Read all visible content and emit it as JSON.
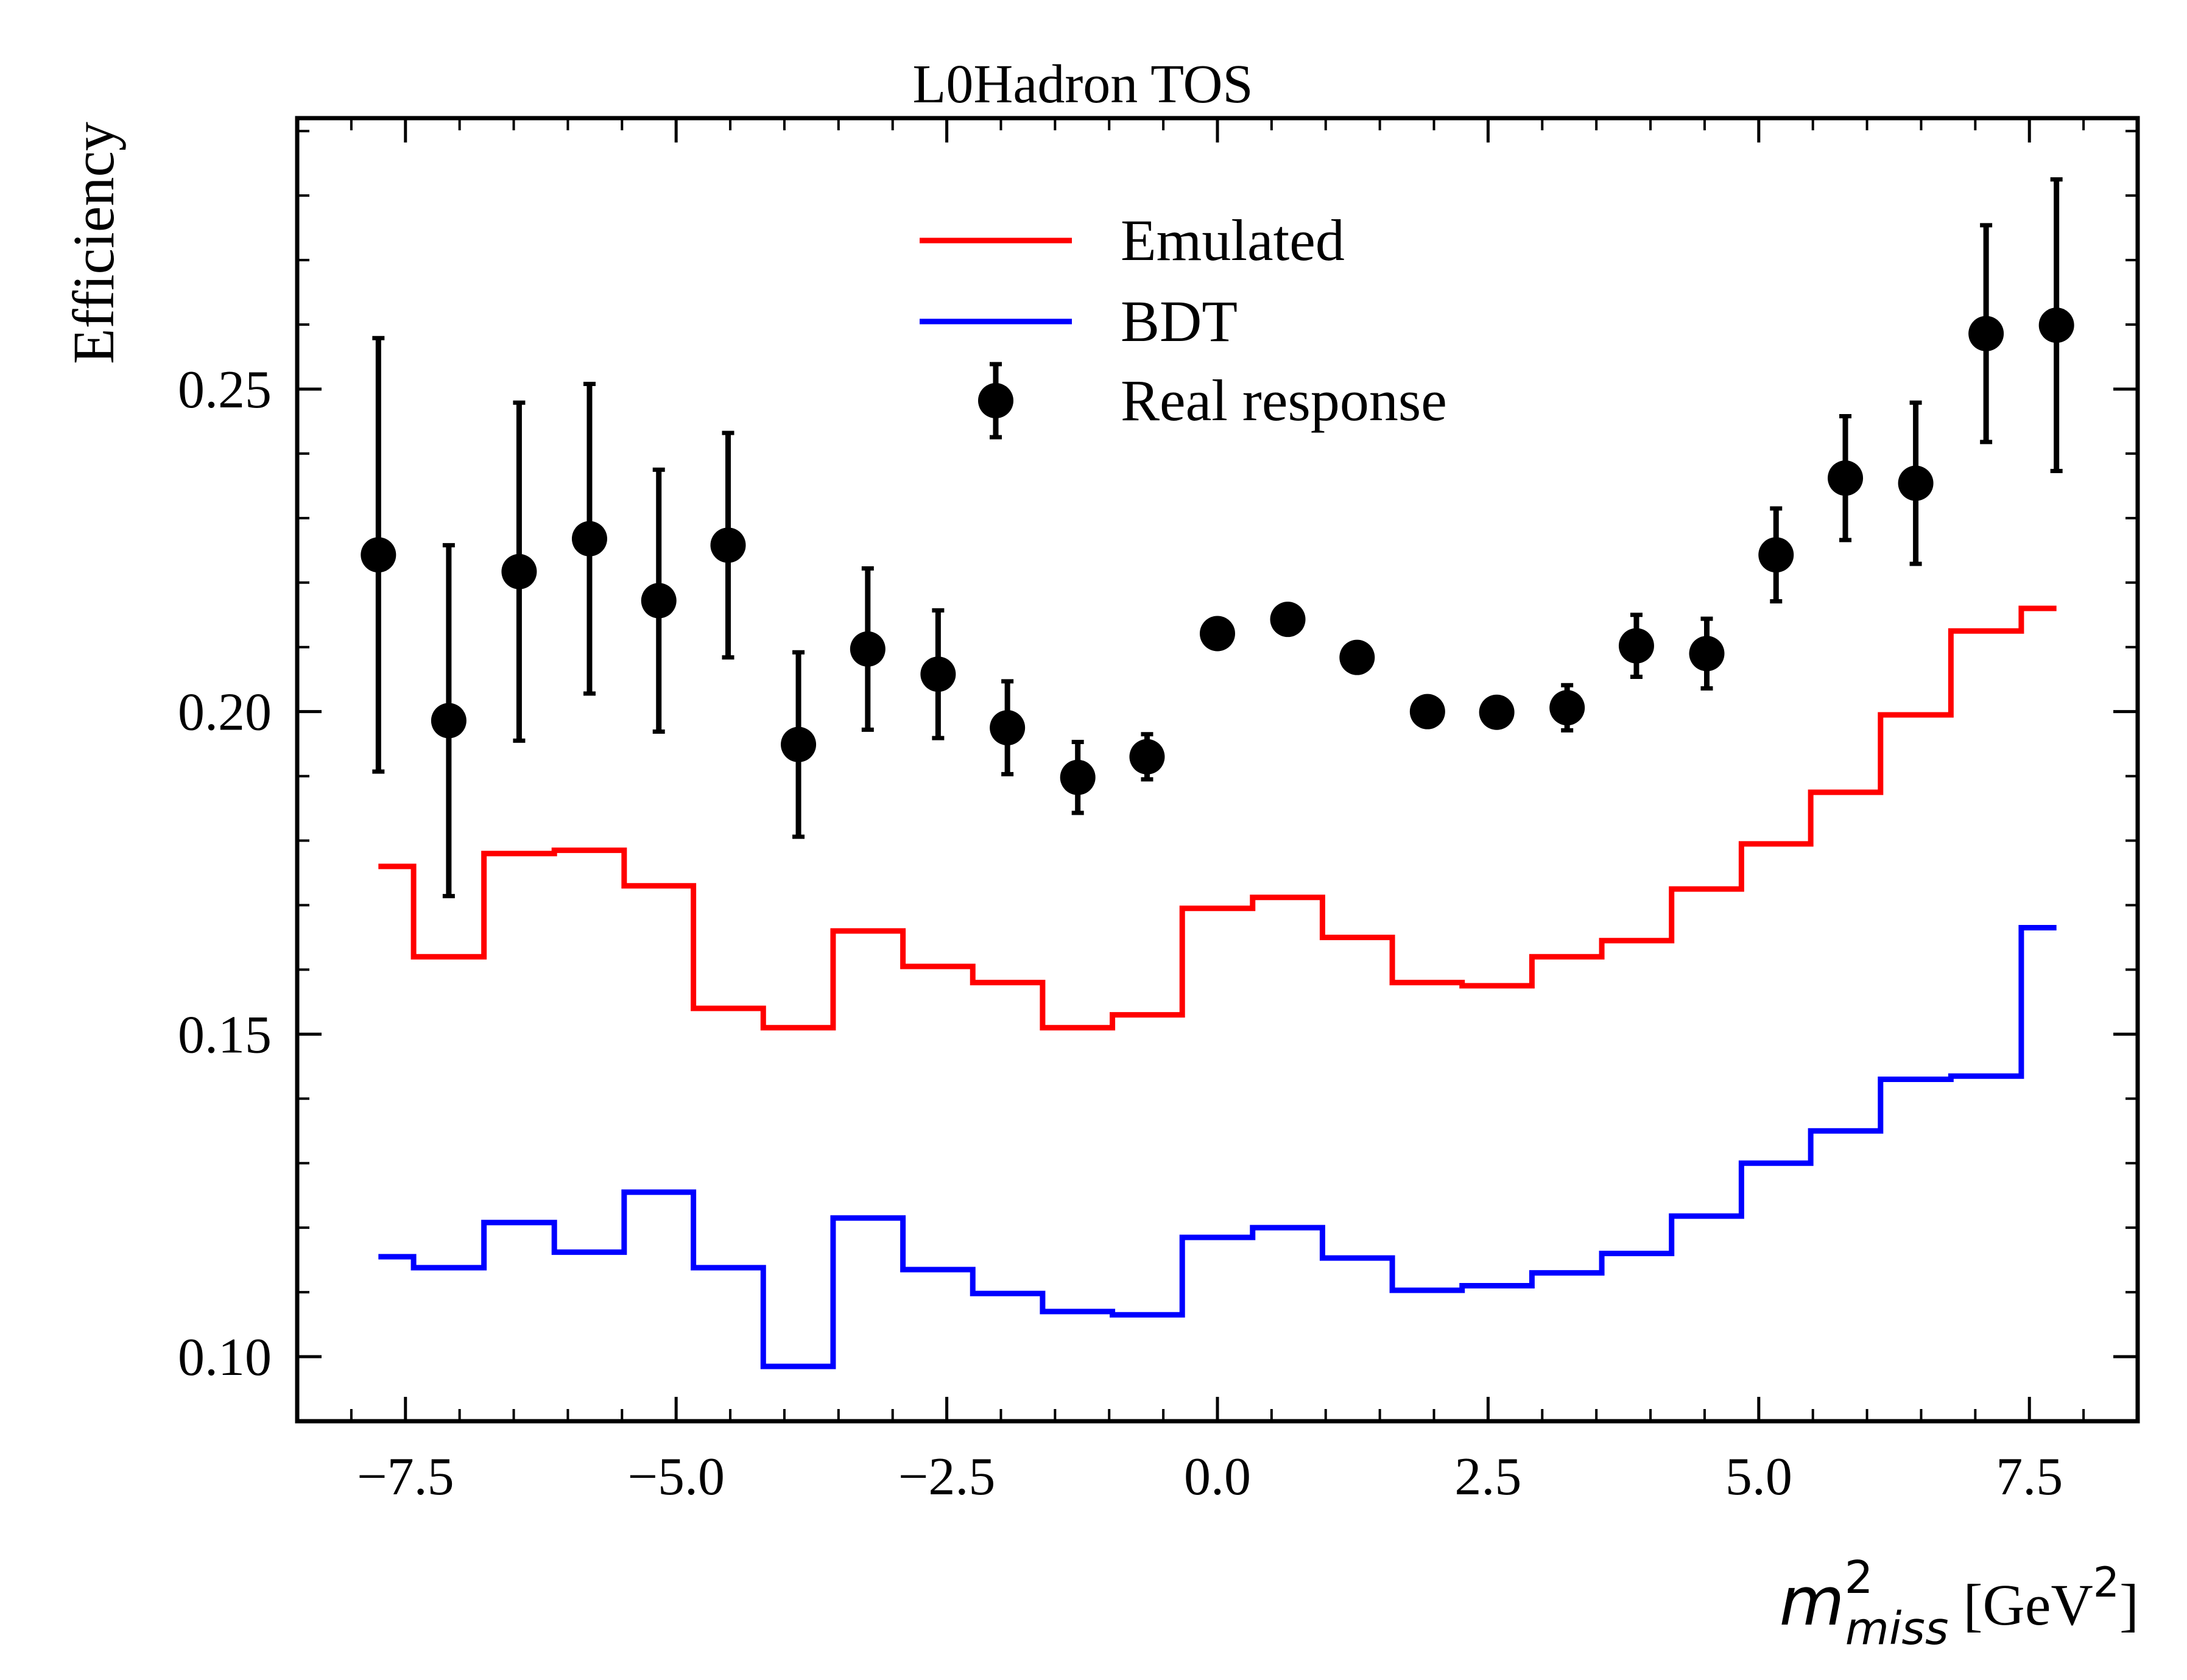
{
  "chart_data": {
    "type": "line",
    "title": "L0Hadron TOS",
    "xlabel": {
      "symbol": "m",
      "superscript": "2",
      "subscript": "miss",
      "unit_prefix": "[GeV",
      "unit_superscript": "2",
      "unit_suffix": "]"
    },
    "ylabel": "Efficiency",
    "xlim": [
      -8.5,
      8.5
    ],
    "ylim": [
      0.09,
      0.292
    ],
    "xticks": [
      -7.5,
      -5.0,
      -2.5,
      0.0,
      2.5,
      5.0,
      7.5
    ],
    "xtick_labels": [
      "−7.5",
      "−5.0",
      "−2.5",
      "0.0",
      "2.5",
      "5.0",
      "7.5"
    ],
    "yticks": [
      0.1,
      0.15,
      0.2,
      0.25
    ],
    "ytick_labels": [
      "0.10",
      "0.15",
      "0.20",
      "0.25"
    ],
    "legend_position": "top-center",
    "bin_edges": [
      -7.75,
      -7.1,
      -6.45,
      -5.8,
      -5.16,
      -4.52,
      -3.87,
      -3.23,
      -2.58,
      -1.94,
      -1.29,
      -0.65,
      0.0,
      0.65,
      1.29,
      1.94,
      2.58,
      3.23,
      3.87,
      4.52,
      5.16,
      5.8,
      6.45,
      7.1,
      7.75
    ],
    "series": [
      {
        "name": "Emulated",
        "style": "step",
        "color": "#ff0000",
        "values": [
          0.176,
          0.162,
          0.178,
          0.1785,
          0.173,
          0.154,
          0.151,
          0.166,
          0.1605,
          0.158,
          0.151,
          0.153,
          0.1695,
          0.1712,
          0.165,
          0.158,
          0.1575,
          0.162,
          0.1645,
          0.1725,
          0.1795,
          0.1875,
          0.1995,
          0.2125,
          0.216
        ]
      },
      {
        "name": "BDT",
        "style": "step",
        "color": "#0000ff",
        "values": [
          0.1155,
          0.1138,
          0.1208,
          0.1162,
          0.1255,
          0.1138,
          0.0985,
          0.1215,
          0.1135,
          0.1098,
          0.107,
          0.1065,
          0.1185,
          0.12,
          0.1153,
          0.1103,
          0.111,
          0.113,
          0.116,
          0.1218,
          0.13,
          0.135,
          0.143,
          0.1435,
          0.1665
        ]
      },
      {
        "name": "Real response",
        "style": "errorbar",
        "color": "#000000",
        "x": [
          -7.75,
          -7.1,
          -6.45,
          -5.8,
          -5.16,
          -4.52,
          -3.87,
          -3.23,
          -2.58,
          -1.94,
          -1.29,
          -0.65,
          0.0,
          0.65,
          1.29,
          1.94,
          2.58,
          3.23,
          3.87,
          4.52,
          5.16,
          5.8,
          6.45,
          7.1,
          7.75
        ],
        "y": [
          0.2243,
          0.1986,
          0.2217,
          0.2268,
          0.2172,
          0.2258,
          0.1949,
          0.2097,
          0.2058,
          0.1975,
          0.1898,
          0.193,
          0.2121,
          0.2143,
          0.2084,
          0.2,
          0.1999,
          0.2006,
          0.2102,
          0.209,
          0.2243,
          0.2362,
          0.2354,
          0.2586,
          0.2599
        ],
        "yerr": [
          0.0336,
          0.0272,
          0.0262,
          0.024,
          0.0203,
          0.0174,
          0.0143,
          0.0125,
          0.0099,
          0.0072,
          0.0055,
          0.0035,
          0.0,
          0.0,
          0.0,
          0.0,
          0.0,
          0.0035,
          0.0048,
          0.0054,
          0.0072,
          0.0096,
          0.0125,
          0.0168,
          0.0226
        ]
      }
    ]
  }
}
